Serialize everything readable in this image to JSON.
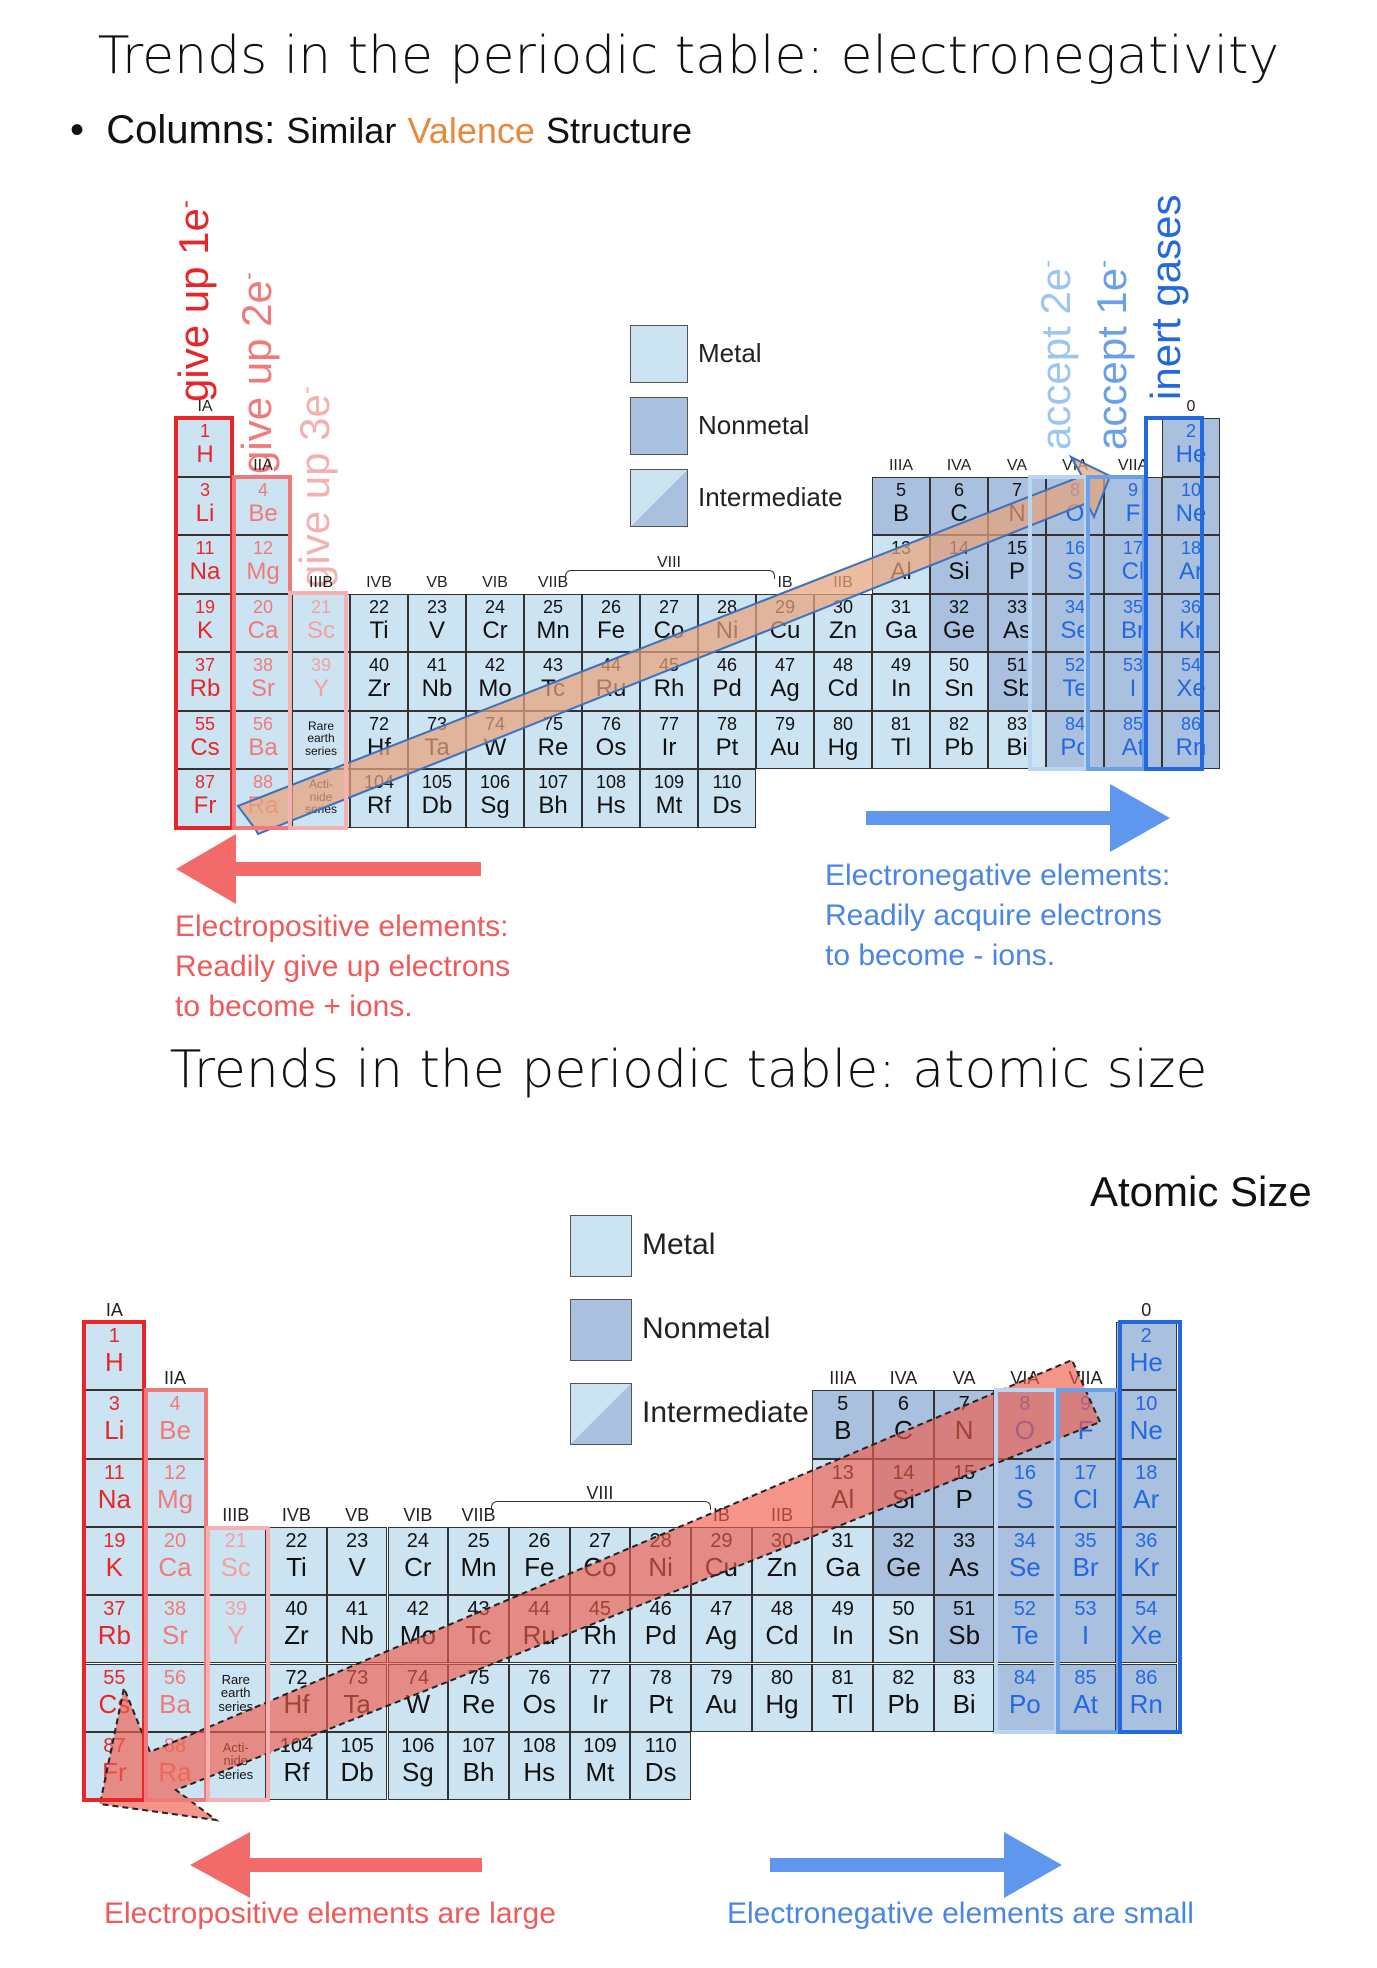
{
  "top": {
    "title": "Trends in the periodic table: electronegativity",
    "bullet": {
      "lead": "Columns:",
      "pre": "Similar",
      "highlight": "Valence",
      "post": "Structure"
    },
    "vertical_labels": {
      "give1": "give up 1e",
      "give2": "give up 2e",
      "give3": "give up 3e",
      "accept2": "accept 2e",
      "accept1": "accept 1e",
      "inert": "inert gases",
      "sup": "-"
    },
    "left_desc": [
      "Electropositive elements:",
      "Readily give up electrons",
      "to become + ions."
    ],
    "right_desc": [
      "Electronegative elements:",
      "Readily acquire electrons",
      "to become - ions."
    ],
    "colors": {
      "red": "#f05a5a",
      "blue": "#4a86e8",
      "arrow_fill": "#e8a27a"
    }
  },
  "bottom": {
    "title": "Trends in the periodic table: atomic size",
    "size_label": "Atomic Size",
    "left_desc": "Electropositive elements are large",
    "right_desc": "Electronegative elements are small",
    "colors": {
      "arrow_fill": "#f05a4a"
    }
  },
  "legend": {
    "metal": "Metal",
    "nonmetal": "Nonmetal",
    "intermediate": "Intermediate"
  },
  "group_labels": {
    "g1": "IA",
    "g2": "IIA",
    "g3": "IIIB",
    "g4": "IVB",
    "g5": "VB",
    "g6": "VIB",
    "g7": "VIIB",
    "viii": "VIII",
    "g11": "IB",
    "g12": "IIB",
    "g13": "IIIA",
    "g14": "IVA",
    "g15": "VA",
    "g16": "VIA",
    "g17": "VIIA",
    "g18": "0"
  },
  "elements": [
    {
      "n": "1",
      "s": "H",
      "c": 1,
      "r": 1
    },
    {
      "n": "2",
      "s": "He",
      "c": 18,
      "r": 1
    },
    {
      "n": "3",
      "s": "Li",
      "c": 1,
      "r": 2
    },
    {
      "n": "4",
      "s": "Be",
      "c": 2,
      "r": 2
    },
    {
      "n": "5",
      "s": "B",
      "c": 13,
      "r": 2
    },
    {
      "n": "6",
      "s": "C",
      "c": 14,
      "r": 2
    },
    {
      "n": "7",
      "s": "N",
      "c": 15,
      "r": 2
    },
    {
      "n": "8",
      "s": "O",
      "c": 16,
      "r": 2
    },
    {
      "n": "9",
      "s": "F",
      "c": 17,
      "r": 2
    },
    {
      "n": "10",
      "s": "Ne",
      "c": 18,
      "r": 2
    },
    {
      "n": "11",
      "s": "Na",
      "c": 1,
      "r": 3
    },
    {
      "n": "12",
      "s": "Mg",
      "c": 2,
      "r": 3
    },
    {
      "n": "13",
      "s": "Al",
      "c": 13,
      "r": 3
    },
    {
      "n": "14",
      "s": "Si",
      "c": 14,
      "r": 3
    },
    {
      "n": "15",
      "s": "P",
      "c": 15,
      "r": 3
    },
    {
      "n": "16",
      "s": "S",
      "c": 16,
      "r": 3
    },
    {
      "n": "17",
      "s": "Cl",
      "c": 17,
      "r": 3
    },
    {
      "n": "18",
      "s": "Ar",
      "c": 18,
      "r": 3
    },
    {
      "n": "19",
      "s": "K",
      "c": 1,
      "r": 4
    },
    {
      "n": "20",
      "s": "Ca",
      "c": 2,
      "r": 4
    },
    {
      "n": "21",
      "s": "Sc",
      "c": 3,
      "r": 4
    },
    {
      "n": "22",
      "s": "Ti",
      "c": 4,
      "r": 4
    },
    {
      "n": "23",
      "s": "V",
      "c": 5,
      "r": 4
    },
    {
      "n": "24",
      "s": "Cr",
      "c": 6,
      "r": 4
    },
    {
      "n": "25",
      "s": "Mn",
      "c": 7,
      "r": 4
    },
    {
      "n": "26",
      "s": "Fe",
      "c": 8,
      "r": 4
    },
    {
      "n": "27",
      "s": "Co",
      "c": 9,
      "r": 4
    },
    {
      "n": "28",
      "s": "Ni",
      "c": 10,
      "r": 4
    },
    {
      "n": "29",
      "s": "Cu",
      "c": 11,
      "r": 4
    },
    {
      "n": "30",
      "s": "Zn",
      "c": 12,
      "r": 4
    },
    {
      "n": "31",
      "s": "Ga",
      "c": 13,
      "r": 4
    },
    {
      "n": "32",
      "s": "Ge",
      "c": 14,
      "r": 4
    },
    {
      "n": "33",
      "s": "As",
      "c": 15,
      "r": 4
    },
    {
      "n": "34",
      "s": "Se",
      "c": 16,
      "r": 4
    },
    {
      "n": "35",
      "s": "Br",
      "c": 17,
      "r": 4
    },
    {
      "n": "36",
      "s": "Kr",
      "c": 18,
      "r": 4
    },
    {
      "n": "37",
      "s": "Rb",
      "c": 1,
      "r": 5
    },
    {
      "n": "38",
      "s": "Sr",
      "c": 2,
      "r": 5
    },
    {
      "n": "39",
      "s": "Y",
      "c": 3,
      "r": 5
    },
    {
      "n": "40",
      "s": "Zr",
      "c": 4,
      "r": 5
    },
    {
      "n": "41",
      "s": "Nb",
      "c": 5,
      "r": 5
    },
    {
      "n": "42",
      "s": "Mo",
      "c": 6,
      "r": 5
    },
    {
      "n": "43",
      "s": "Tc",
      "c": 7,
      "r": 5
    },
    {
      "n": "44",
      "s": "Ru",
      "c": 8,
      "r": 5
    },
    {
      "n": "45",
      "s": "Rh",
      "c": 9,
      "r": 5
    },
    {
      "n": "46",
      "s": "Pd",
      "c": 10,
      "r": 5
    },
    {
      "n": "47",
      "s": "Ag",
      "c": 11,
      "r": 5
    },
    {
      "n": "48",
      "s": "Cd",
      "c": 12,
      "r": 5
    },
    {
      "n": "49",
      "s": "In",
      "c": 13,
      "r": 5
    },
    {
      "n": "50",
      "s": "Sn",
      "c": 14,
      "r": 5
    },
    {
      "n": "51",
      "s": "Sb",
      "c": 15,
      "r": 5
    },
    {
      "n": "52",
      "s": "Te",
      "c": 16,
      "r": 5
    },
    {
      "n": "53",
      "s": "I",
      "c": 17,
      "r": 5
    },
    {
      "n": "54",
      "s": "Xe",
      "c": 18,
      "r": 5
    },
    {
      "n": "55",
      "s": "Cs",
      "c": 1,
      "r": 6
    },
    {
      "n": "56",
      "s": "Ba",
      "c": 2,
      "r": 6
    },
    {
      "n": "",
      "s": "",
      "note": [
        "Rare",
        "earth",
        "series"
      ],
      "c": 3,
      "r": 6
    },
    {
      "n": "72",
      "s": "Hf",
      "c": 4,
      "r": 6
    },
    {
      "n": "73",
      "s": "Ta",
      "c": 5,
      "r": 6
    },
    {
      "n": "74",
      "s": "W",
      "c": 6,
      "r": 6
    },
    {
      "n": "75",
      "s": "Re",
      "c": 7,
      "r": 6
    },
    {
      "n": "76",
      "s": "Os",
      "c": 8,
      "r": 6
    },
    {
      "n": "77",
      "s": "Ir",
      "c": 9,
      "r": 6
    },
    {
      "n": "78",
      "s": "Pt",
      "c": 10,
      "r": 6
    },
    {
      "n": "79",
      "s": "Au",
      "c": 11,
      "r": 6
    },
    {
      "n": "80",
      "s": "Hg",
      "c": 12,
      "r": 6
    },
    {
      "n": "81",
      "s": "Tl",
      "c": 13,
      "r": 6
    },
    {
      "n": "82",
      "s": "Pb",
      "c": 14,
      "r": 6
    },
    {
      "n": "83",
      "s": "Bi",
      "c": 15,
      "r": 6
    },
    {
      "n": "84",
      "s": "Po",
      "c": 16,
      "r": 6
    },
    {
      "n": "85",
      "s": "At",
      "c": 17,
      "r": 6
    },
    {
      "n": "86",
      "s": "Rn",
      "c": 18,
      "r": 6
    },
    {
      "n": "87",
      "s": "Fr",
      "c": 1,
      "r": 7
    },
    {
      "n": "88",
      "s": "Ra",
      "c": 2,
      "r": 7
    },
    {
      "n": "",
      "s": "",
      "note": [
        "Acti-",
        "nide",
        "series"
      ],
      "c": 3,
      "r": 7
    },
    {
      "n": "104",
      "s": "Rf",
      "c": 4,
      "r": 7
    },
    {
      "n": "105",
      "s": "Db",
      "c": 5,
      "r": 7
    },
    {
      "n": "106",
      "s": "Sg",
      "c": 6,
      "r": 7
    },
    {
      "n": "107",
      "s": "Bh",
      "c": 7,
      "r": 7
    },
    {
      "n": "108",
      "s": "Hs",
      "c": 8,
      "r": 7
    },
    {
      "n": "109",
      "s": "Mt",
      "c": 9,
      "r": 7
    },
    {
      "n": "110",
      "s": "Ds",
      "c": 10,
      "r": 7
    }
  ]
}
